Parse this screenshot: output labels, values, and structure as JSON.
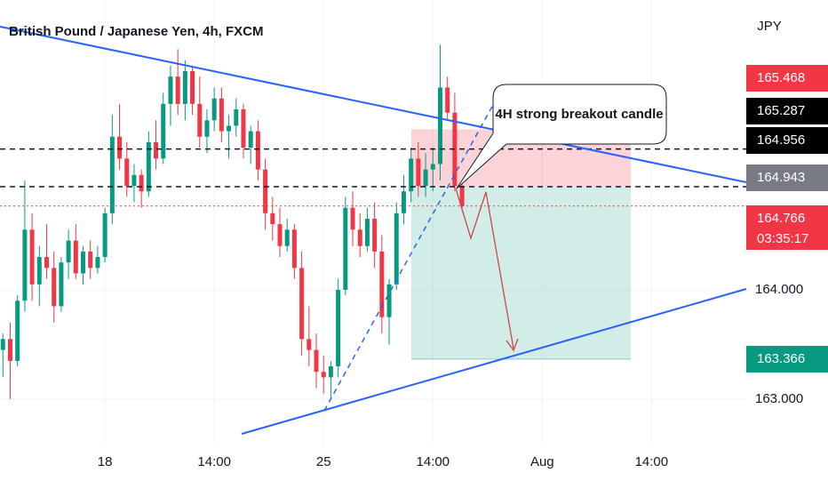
{
  "chart_data": {
    "type": "candlestick",
    "title": "British Pound / Japanese Yen, 4h, FXCM",
    "y_axis_label": "JPY",
    "x": [
      -14,
      -13,
      -12,
      -11,
      -10,
      -9,
      -8,
      -7,
      -6,
      -5,
      -4,
      -3,
      -2,
      -1,
      0,
      1,
      2,
      3,
      4,
      5,
      6,
      7,
      8,
      9,
      10,
      11,
      12,
      13,
      14,
      15,
      16,
      17,
      18,
      19,
      20,
      21,
      22,
      23,
      24,
      25,
      26,
      27,
      28,
      29,
      30,
      31,
      32,
      33,
      34,
      35,
      36,
      37,
      38,
      39,
      40,
      41,
      42,
      43,
      44,
      45,
      46,
      47,
      48,
      49
    ],
    "open": [
      163.45,
      163.55,
      163.35,
      163.9,
      164.55,
      164.05,
      164.3,
      164.2,
      163.85,
      164.25,
      164.45,
      164.15,
      164.35,
      164.2,
      164.3,
      164.7,
      165.4,
      165.2,
      164.95,
      165.05,
      164.9,
      165.35,
      165.2,
      165.7,
      165.95,
      165.7,
      166.0,
      165.7,
      165.4,
      165.55,
      165.75,
      165.45,
      165.5,
      165.65,
      165.3,
      165.45,
      165.1,
      164.7,
      164.6,
      164.4,
      164.55,
      164.2,
      163.55,
      163.45,
      163.25,
      163.2,
      163.3,
      164.0,
      164.75,
      164.55,
      164.4,
      164.65,
      164.35,
      163.75,
      164.05,
      164.7,
      164.9,
      165.2,
      164.95,
      165.1,
      165.15,
      165.85,
      165.62,
      164.95
    ],
    "high": [
      163.6,
      163.7,
      163.95,
      165.0,
      164.7,
      164.4,
      164.6,
      164.35,
      164.3,
      164.55,
      164.6,
      164.4,
      164.45,
      164.4,
      164.75,
      165.6,
      165.7,
      165.35,
      165.15,
      165.1,
      165.45,
      165.55,
      165.8,
      166.05,
      166.2,
      166.1,
      166.05,
      165.95,
      165.65,
      165.85,
      165.85,
      165.6,
      165.75,
      165.7,
      165.5,
      165.55,
      165.2,
      164.85,
      164.75,
      164.65,
      164.6,
      164.35,
      163.85,
      163.6,
      163.4,
      163.35,
      164.1,
      164.85,
      164.9,
      164.7,
      164.75,
      164.8,
      164.5,
      164.1,
      164.8,
      165.05,
      165.3,
      165.35,
      165.25,
      165.3,
      166.24,
      165.95,
      165.8,
      165.0
    ],
    "low": [
      163.2,
      163.0,
      163.3,
      163.8,
      163.9,
      163.85,
      164.1,
      163.7,
      163.8,
      164.1,
      164.1,
      164.05,
      164.1,
      164.15,
      164.25,
      164.6,
      165.1,
      164.85,
      164.8,
      164.75,
      164.85,
      165.1,
      165.15,
      165.5,
      165.6,
      165.55,
      165.6,
      165.3,
      165.25,
      165.45,
      165.35,
      165.2,
      165.4,
      165.2,
      165.15,
      165.0,
      164.55,
      164.45,
      164.3,
      164.35,
      164.1,
      163.4,
      163.3,
      163.1,
      163.05,
      163.0,
      163.2,
      163.95,
      164.4,
      164.3,
      164.35,
      164.2,
      163.6,
      163.5,
      164.0,
      164.6,
      164.8,
      164.85,
      164.85,
      164.9,
      165.0,
      165.55,
      164.9,
      164.72
    ],
    "close": [
      163.55,
      163.35,
      163.9,
      164.55,
      164.05,
      164.3,
      164.2,
      163.85,
      164.25,
      164.45,
      164.15,
      164.35,
      164.2,
      164.3,
      164.7,
      165.4,
      165.2,
      164.95,
      165.05,
      164.9,
      165.35,
      165.2,
      165.7,
      165.95,
      165.7,
      166.0,
      165.7,
      165.4,
      165.55,
      165.75,
      165.45,
      165.5,
      165.65,
      165.3,
      165.45,
      165.1,
      164.7,
      164.6,
      164.4,
      164.55,
      164.2,
      163.55,
      163.45,
      163.25,
      163.2,
      163.3,
      164.0,
      164.75,
      164.55,
      164.4,
      164.65,
      164.35,
      163.75,
      164.05,
      164.7,
      164.9,
      165.2,
      164.95,
      165.1,
      165.15,
      165.85,
      165.62,
      164.95,
      164.766
    ],
    "up_color": "#089981",
    "down_color": "#f23645",
    "xlim": [
      -14.4,
      88
    ],
    "xticks": [
      {
        "value": 0,
        "label": "18"
      },
      {
        "value": 15,
        "label": "14:00"
      },
      {
        "value": 30,
        "label": "25"
      },
      {
        "value": 45,
        "label": "14:00"
      },
      {
        "value": 60,
        "label": "Aug"
      },
      {
        "value": 75,
        "label": "14:00"
      }
    ],
    "ylim": [
      162.585,
      166.65
    ],
    "yticks": [
      {
        "value": 163,
        "label": "163.000"
      },
      {
        "value": 164,
        "label": "164.000"
      }
    ],
    "grid": true,
    "price_labels": [
      {
        "value": 165.468,
        "label": "165.468",
        "color": "#f23645"
      },
      {
        "value": 165.287,
        "label": "165.287",
        "color": "#000000"
      },
      {
        "value": 164.956,
        "label": "164.956",
        "color": "#000000"
      },
      {
        "value": 164.943,
        "label": "164.943",
        "color": "#787b86"
      },
      {
        "value": 164.766,
        "label": "164.766",
        "color": "#f23645",
        "countdown": "03:35:17"
      },
      {
        "value": 163.366,
        "label": "163.366",
        "color": "#089981"
      }
    ],
    "annotation": "4H strong breakout candle"
  }
}
